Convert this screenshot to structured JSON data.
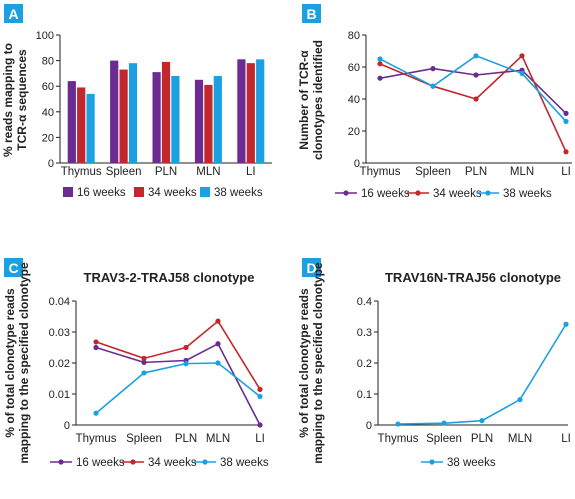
{
  "chart_data": [
    {
      "panel": "A",
      "type": "bar",
      "title": "",
      "ylabel": [
        "% reads mapping to",
        "TCR-α sequences"
      ],
      "xlabel": "",
      "categories": [
        "Thymus",
        "Spleen",
        "PLN",
        "MLN",
        "LI"
      ],
      "ylim": [
        0,
        100
      ],
      "yticks": [
        "0",
        "20",
        "40",
        "60",
        "80",
        "100"
      ],
      "series": [
        {
          "name": "16 weeks",
          "color": "#6a2c91",
          "values": [
            64,
            80,
            71,
            65,
            81
          ]
        },
        {
          "name": "34 weeks",
          "color": "#c1272d",
          "values": [
            59,
            73,
            79,
            61,
            78
          ]
        },
        {
          "name": "38 weeks",
          "color": "#1ba1e2",
          "values": [
            54,
            78,
            68,
            68,
            81
          ]
        }
      ],
      "legend": "bottom",
      "grid": false
    },
    {
      "panel": "B",
      "type": "line",
      "title": "",
      "ylabel": [
        "Number of TCR-α",
        "clonotypes identified"
      ],
      "xlabel": "",
      "categories": [
        "Thymus",
        "Spleen",
        "PLN",
        "MLN",
        "LI"
      ],
      "ylim": [
        0,
        80
      ],
      "yticks": [
        "0",
        "20",
        "40",
        "60",
        "80"
      ],
      "series": [
        {
          "name": "16 weeks",
          "color": "#6a2c91",
          "values": [
            53,
            59,
            55,
            58,
            31
          ]
        },
        {
          "name": "34 weeks",
          "color": "#c1272d",
          "values": [
            62,
            48,
            40,
            67,
            7
          ]
        },
        {
          "name": "38 weeks",
          "color": "#1ba1e2",
          "values": [
            65,
            48,
            67,
            56,
            26
          ]
        }
      ],
      "legend": "bottom",
      "grid": false
    },
    {
      "panel": "C",
      "type": "line",
      "title": "TRAV3-2-TRAJ58 clonotype",
      "ylabel": [
        "% of total clonotype reads",
        "mapping to the specified clonotype"
      ],
      "xlabel": "",
      "categories": [
        "Thymus",
        "Spleen",
        "PLN",
        "MLN",
        "LI"
      ],
      "ylim": [
        0,
        0.04
      ],
      "yticks": [
        "0",
        "0.01",
        "0.02",
        "0.03",
        "0.04"
      ],
      "series": [
        {
          "name": "16 weeks",
          "color": "#6a2c91",
          "values": [
            0.025,
            0.0202,
            0.0208,
            0.0262,
            0.0
          ]
        },
        {
          "name": "34 weeks",
          "color": "#c1272d",
          "values": [
            0.0268,
            0.0215,
            0.025,
            0.0335,
            0.0115
          ]
        },
        {
          "name": "38 weeks",
          "color": "#1ba1e2",
          "values": [
            0.0038,
            0.0168,
            0.0198,
            0.02,
            0.0092
          ]
        }
      ],
      "legend": "bottom",
      "grid": false
    },
    {
      "panel": "D",
      "type": "line",
      "title": "TRAV16N-TRAJ56 clonotype",
      "ylabel": [
        "% of total clonotype reads",
        "mapping to the specified clonotype"
      ],
      "xlabel": "",
      "categories": [
        "Thymus",
        "Spleen",
        "PLN",
        "MLN",
        "LI"
      ],
      "ylim": [
        0,
        0.4
      ],
      "yticks": [
        "0",
        "0.1",
        "0.2",
        "0.3",
        "0.4"
      ],
      "series": [
        {
          "name": "38 weeks",
          "color": "#1ba1e2",
          "values": [
            0.003,
            0.006,
            0.014,
            0.082,
            0.325
          ]
        }
      ],
      "legend": "bottom",
      "grid": false
    }
  ],
  "style": {
    "badge_color": "#1ba1e2",
    "badge_text_color": "#ffffff",
    "axis_color": "#222222"
  }
}
